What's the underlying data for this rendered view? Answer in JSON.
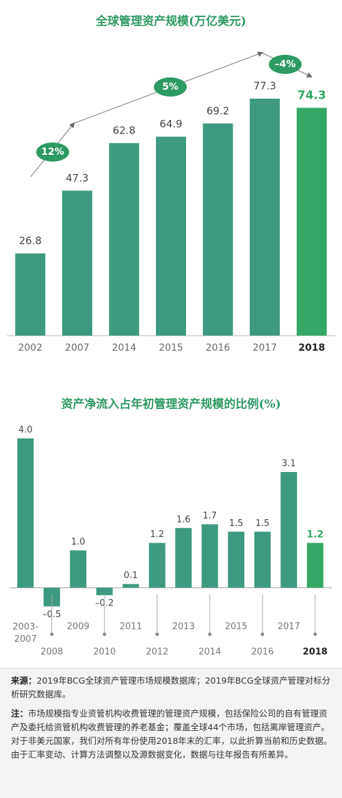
{
  "chart_data": [
    {
      "type": "bar",
      "title": "全球管理资产规模(万亿美元)",
      "categories": [
        "2002",
        "2007",
        "2014",
        "2015",
        "2016",
        "2017",
        "2018"
      ],
      "values": [
        26.8,
        47.3,
        62.8,
        64.9,
        69.2,
        77.3,
        74.3
      ],
      "colors": [
        "#3d9a80",
        "#3d9a80",
        "#3d9a80",
        "#3d9a80",
        "#3d9a80",
        "#3d9a80",
        "#35a866"
      ],
      "annotations": [
        "12%",
        "5%",
        "–4%"
      ]
    },
    {
      "type": "bar",
      "title": "资产净流入占年初管理资产规模的比例(%)",
      "categories": [
        "2003-2007",
        "2008",
        "2009",
        "2010",
        "2011",
        "2012",
        "2013",
        "2014",
        "2015",
        "2016",
        "2017",
        "2018"
      ],
      "values": [
        4.0,
        -0.5,
        1.0,
        -0.2,
        0.1,
        1.2,
        1.6,
        1.7,
        1.5,
        1.5,
        3.1,
        1.2
      ],
      "value_labels": [
        "4.0",
        "–0.5",
        "1.0",
        "–0.2",
        "0.1",
        "1.2",
        "1.6",
        "1.7",
        "1.5",
        "1.5",
        "3.1",
        "1.2"
      ],
      "colors": [
        "#3d9a80",
        "#3d9a80",
        "#3d9a80",
        "#3d9a80",
        "#3d9a80",
        "#3d9a80",
        "#3d9a80",
        "#3d9a80",
        "#3d9a80",
        "#3d9a80",
        "#3d9a80",
        "#35a866"
      ]
    }
  ],
  "footer": {
    "source_label": "来源：",
    "source": "2019年BCG全球资产管理市场规模数据库；2019年BCG全球资产管理对标分析研究数据库。",
    "note_label": "注：",
    "note": "市场规模指专业资管机构收费管理的管理资产规模，包括保险公司的自有管理资产及委托给资管机构收费管理的养老基金；覆盖全球44个市场，包括离岸管理资产。对于非美元国家，我们对所有年份使用2018年末的汇率，以此折算当前和历史数据。由于汇率变动、计算方法调整以及源数据变化，数据与往年报告有所差异。"
  }
}
